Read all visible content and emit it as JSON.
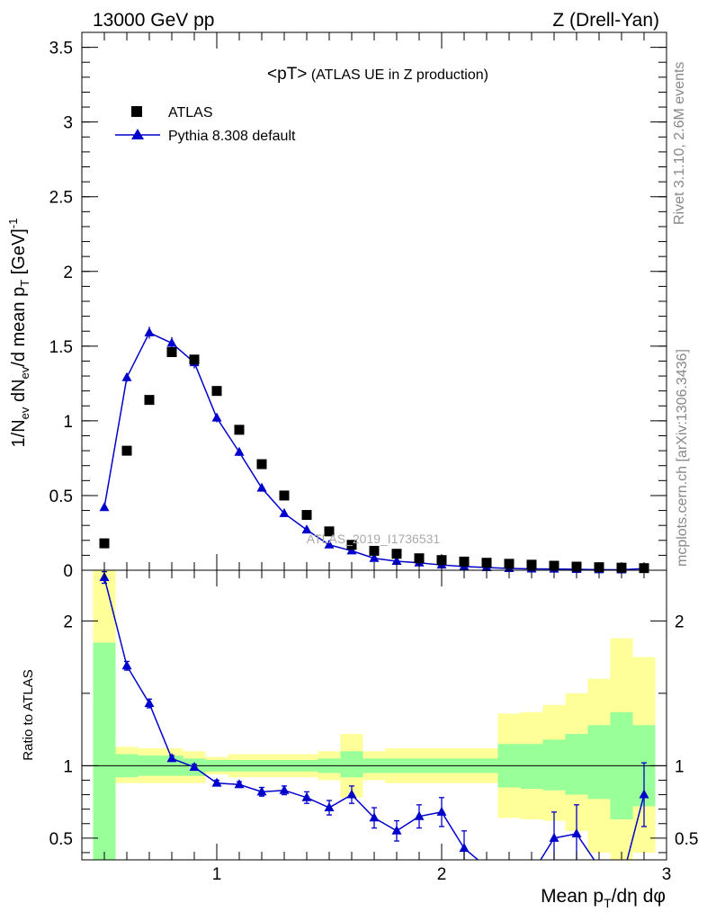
{
  "header": {
    "left": "13000 GeV pp",
    "right": "Z (Drell-Yan)"
  },
  "side_texts": {
    "rivet": "Rivet 3.1.10,  2.6M events",
    "mcplots": "mcplots.cern.ch [arXiv:1306.3436]"
  },
  "watermark": "ATLAS_2019_I1736531",
  "colors": {
    "mc": "#0000cc",
    "data": "#000000",
    "band_stat": "#99ff99",
    "band_total": "#ffff99"
  },
  "chart_data": [
    {
      "type": "scatter",
      "title_main": "<pT>",
      "title_rest": " (ATLAS UE in Z production)",
      "ylabel": "1/N_ev dN_ev/d mean p_T [GeV]^-1",
      "xlim": [
        0.4,
        3.0
      ],
      "ylim": [
        0,
        3.6
      ],
      "yticks": [
        0,
        0.5,
        1,
        1.5,
        2,
        2.5,
        3,
        3.5
      ],
      "ytick_labels": [
        "0",
        "0.5",
        "1",
        "1.5",
        "2",
        "2.5",
        "3",
        "3.5"
      ],
      "legend_position": "top-left",
      "series": [
        {
          "name": "ATLAS",
          "marker": "square",
          "x": [
            0.5,
            0.6,
            0.7,
            0.8,
            0.9,
            1.0,
            1.1,
            1.2,
            1.3,
            1.4,
            1.5,
            1.6,
            1.7,
            1.8,
            1.9,
            2.0,
            2.1,
            2.2,
            2.3,
            2.4,
            2.5,
            2.6,
            2.7,
            2.8,
            2.9
          ],
          "y": [
            0.18,
            0.8,
            1.14,
            1.46,
            1.41,
            1.2,
            0.94,
            0.71,
            0.5,
            0.37,
            0.26,
            0.17,
            0.13,
            0.11,
            0.08,
            0.068,
            0.058,
            0.05,
            0.043,
            0.037,
            0.03,
            0.024,
            0.02,
            0.017,
            0.014
          ]
        },
        {
          "name": "Pythia 8.308 default",
          "marker": "triangle",
          "x": [
            0.5,
            0.6,
            0.7,
            0.8,
            0.9,
            1.0,
            1.1,
            1.2,
            1.3,
            1.4,
            1.5,
            1.6,
            1.7,
            1.8,
            1.9,
            2.0,
            2.1,
            2.2,
            2.3,
            2.4,
            2.5,
            2.6,
            2.7,
            2.8,
            2.9
          ],
          "y": [
            0.42,
            1.29,
            1.59,
            1.52,
            1.39,
            1.02,
            0.79,
            0.55,
            0.38,
            0.27,
            0.17,
            0.13,
            0.08,
            0.06,
            0.05,
            0.035,
            0.025,
            0.018,
            0.012,
            0.009,
            0.008,
            0.006,
            0.004,
            0.003,
            0.011
          ],
          "yerr": [
            0.02,
            0.03,
            0.04,
            0.04,
            0.04,
            0.03,
            0.025,
            0.02,
            0.015,
            0.012,
            0.01,
            0.01,
            0.008,
            0.007,
            0.006,
            0.005,
            0.004,
            0.004,
            0.003,
            0.003,
            0.003,
            0.003,
            0.002,
            0.002,
            0.003
          ]
        }
      ]
    },
    {
      "type": "line",
      "ylabel": "Ratio to ATLAS",
      "xlabel": "Mean p_T/dη dφ",
      "xlim": [
        0.4,
        3.0
      ],
      "ylim": [
        0.35,
        2.35
      ],
      "xticks": [
        1,
        2,
        3
      ],
      "xtick_labels": [
        "1",
        "2",
        "3"
      ],
      "yticks": [
        0.5,
        1,
        2
      ],
      "ytick_labels": [
        "0.5",
        "1",
        "2"
      ],
      "reference_line": 1,
      "bands": {
        "x_edges": [
          0.45,
          0.55,
          0.65,
          0.75,
          0.85,
          0.95,
          1.05,
          1.15,
          1.25,
          1.35,
          1.45,
          1.55,
          1.65,
          1.75,
          1.85,
          1.95,
          2.05,
          2.15,
          2.25,
          2.35,
          2.45,
          2.55,
          2.65,
          2.75,
          2.85,
          2.95
        ],
        "stat_lo": [
          0.3,
          0.92,
          0.93,
          0.93,
          0.93,
          0.96,
          0.96,
          0.96,
          0.96,
          0.96,
          0.95,
          0.92,
          0.95,
          0.95,
          0.95,
          0.95,
          0.95,
          0.95,
          0.85,
          0.84,
          0.83,
          0.8,
          0.77,
          0.63,
          0.72
        ],
        "stat_hi": [
          1.85,
          1.08,
          1.07,
          1.07,
          1.05,
          1.04,
          1.04,
          1.04,
          1.04,
          1.04,
          1.05,
          1.1,
          1.05,
          1.05,
          1.05,
          1.05,
          1.05,
          1.05,
          1.15,
          1.15,
          1.18,
          1.22,
          1.28,
          1.37,
          1.28
        ],
        "total_lo": [
          0.3,
          0.88,
          0.88,
          0.88,
          0.88,
          0.94,
          0.92,
          0.92,
          0.92,
          0.92,
          0.9,
          0.78,
          0.9,
          0.88,
          0.88,
          0.88,
          0.88,
          0.88,
          0.64,
          0.63,
          0.62,
          0.55,
          0.4,
          0.3,
          0.4
        ],
        "total_hi": [
          2.35,
          1.13,
          1.12,
          1.12,
          1.1,
          1.06,
          1.08,
          1.08,
          1.08,
          1.08,
          1.1,
          1.22,
          1.1,
          1.12,
          1.12,
          1.12,
          1.12,
          1.12,
          1.36,
          1.37,
          1.42,
          1.5,
          1.6,
          1.88,
          1.75
        ]
      },
      "series": [
        {
          "name": "Pythia 8.308 default",
          "x": [
            0.5,
            0.6,
            0.7,
            0.8,
            0.9,
            1.0,
            1.1,
            1.2,
            1.3,
            1.4,
            1.5,
            1.6,
            1.7,
            1.8,
            1.9,
            2.0,
            2.1,
            2.2,
            2.3,
            2.4,
            2.5,
            2.6,
            2.7,
            2.8,
            2.9
          ],
          "y": [
            2.3,
            1.69,
            1.43,
            1.05,
            0.99,
            0.88,
            0.87,
            0.82,
            0.83,
            0.78,
            0.71,
            0.8,
            0.64,
            0.55,
            0.65,
            0.68,
            0.43,
            0.3,
            0.25,
            0.25,
            0.5,
            0.53,
            0.3,
            0.2,
            0.8
          ],
          "yerr": [
            0.04,
            0.03,
            0.03,
            0.02,
            0.02,
            0.02,
            0.02,
            0.03,
            0.03,
            0.04,
            0.05,
            0.06,
            0.07,
            0.07,
            0.08,
            0.1,
            0.12,
            0.15,
            0.15,
            0.15,
            0.18,
            0.2,
            0.2,
            0.2,
            0.22
          ]
        }
      ]
    }
  ]
}
